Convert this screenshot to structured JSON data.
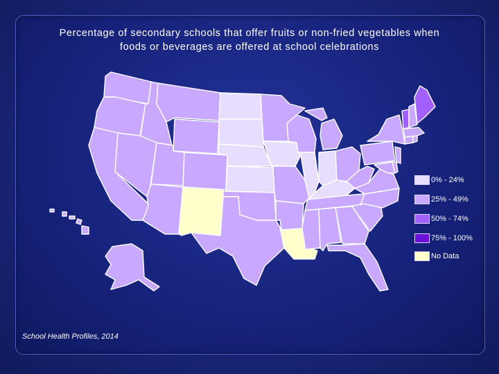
{
  "title_lines": [
    "Percentage of secondary schools that offer fruits or non-fried vegetables when",
    "foods or beverages are offered at school celebrations"
  ],
  "source": "School Health Profiles, 2014",
  "legend": [
    {
      "label": "0% - 24%",
      "color": "#e6ddff"
    },
    {
      "label": "25% - 49%",
      "color": "#c9a9ff"
    },
    {
      "label": "50% - 74%",
      "color": "#a261ff"
    },
    {
      "label": "75% - 100%",
      "color": "#6a10d8"
    },
    {
      "label": "No Data",
      "color": "#ffffcc"
    }
  ],
  "colors": {
    "background": "#1c2a80",
    "border": "#ffffff"
  }
}
